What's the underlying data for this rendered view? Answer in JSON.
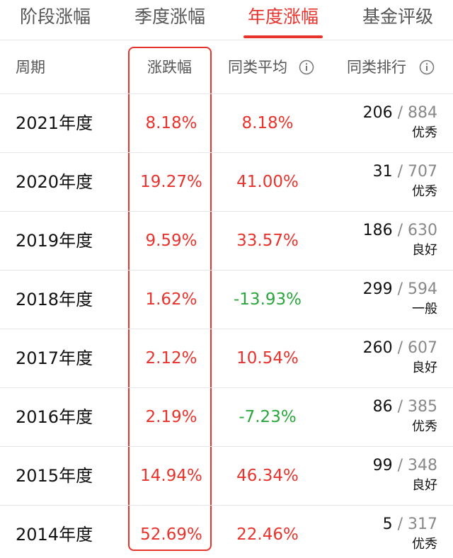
{
  "tabs": [
    "阶段涨幅",
    "季度涨幅",
    "年度涨幅",
    "基金评级"
  ],
  "active_tab": 2,
  "up_color": "#e8332c",
  "down_color": "#2aa63c",
  "table": {
    "headers": [
      "周期",
      "涨跌幅",
      "同类平均",
      "同类排行"
    ],
    "separator": "/",
    "rows": [
      {
        "period": "2021年度",
        "change": "8.18%",
        "average": "8.18%",
        "rank": "206",
        "total": "884",
        "rating": "优秀"
      },
      {
        "period": "2020年度",
        "change": "19.27%",
        "average": "41.00%",
        "rank": "31",
        "total": "707",
        "rating": "优秀"
      },
      {
        "period": "2019年度",
        "change": "9.59%",
        "average": "33.57%",
        "rank": "186",
        "total": "630",
        "rating": "良好"
      },
      {
        "period": "2018年度",
        "change": "1.62%",
        "average": "-13.93%",
        "rank": "299",
        "total": "594",
        "rating": "一般"
      },
      {
        "period": "2017年度",
        "change": "2.12%",
        "average": "10.54%",
        "rank": "260",
        "total": "607",
        "rating": "良好"
      },
      {
        "period": "2016年度",
        "change": "2.19%",
        "average": "-7.23%",
        "rank": "86",
        "total": "385",
        "rating": "优秀"
      },
      {
        "period": "2015年度",
        "change": "14.94%",
        "average": "46.34%",
        "rank": "99",
        "total": "348",
        "rating": "良好"
      },
      {
        "period": "2014年度",
        "change": "52.69%",
        "average": "22.46%",
        "rank": "5",
        "total": "317",
        "rating": "优秀"
      }
    ]
  }
}
